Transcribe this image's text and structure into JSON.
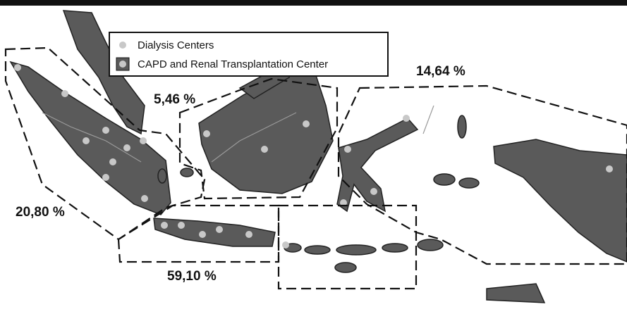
{
  "legend": [
    "Dialysis Centers",
    "CAPD and Renal Transplantation Center"
  ],
  "regions": [
    "5,46 %",
    "14,64 %",
    "20,80 %",
    "59,10 %"
  ]
}
